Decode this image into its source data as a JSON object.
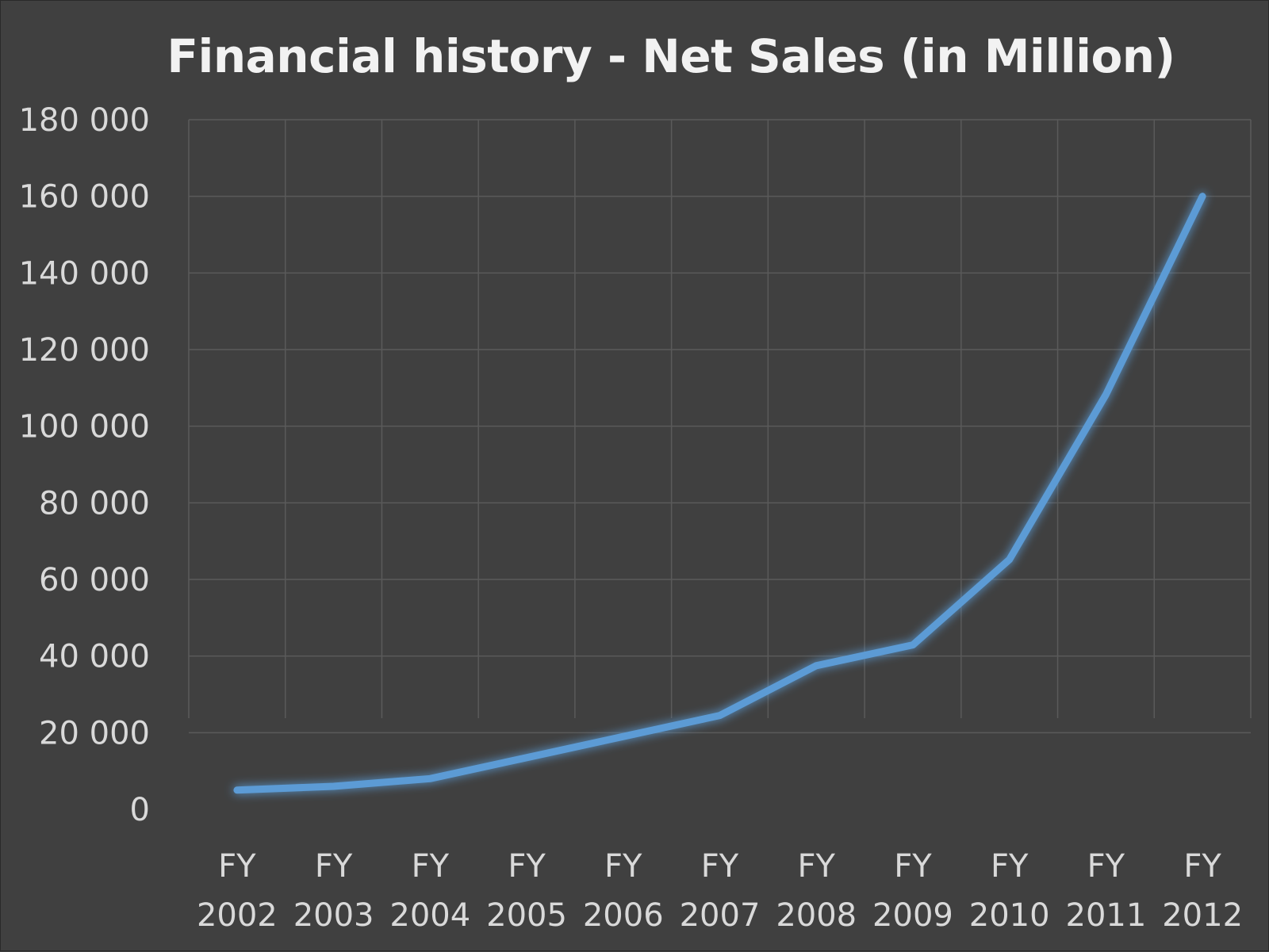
{
  "chart_data": {
    "type": "line",
    "title": "Financial history - Net Sales (in Million)",
    "xlabel": "",
    "ylabel": "",
    "categories": [
      [
        "FY",
        "2002"
      ],
      [
        "FY",
        "2003"
      ],
      [
        "FY",
        "2004"
      ],
      [
        "FY",
        "2005"
      ],
      [
        "FY",
        "2006"
      ],
      [
        "FY",
        "2007"
      ],
      [
        "FY",
        "2008"
      ],
      [
        "FY",
        "2009"
      ],
      [
        "FY",
        "2010"
      ],
      [
        "FY",
        "2011"
      ],
      [
        "FY",
        "2012"
      ]
    ],
    "series": [
      {
        "values": [
          5000,
          6000,
          8000,
          13500,
          19000,
          24500,
          37500,
          42900,
          65200,
          108250,
          160000
        ],
        "color": "#5b9bd5"
      }
    ],
    "ylim": [
      0,
      180000
    ],
    "yticks": [
      0,
      20000,
      40000,
      60000,
      80000,
      100000,
      120000,
      140000,
      160000,
      180000
    ],
    "ytick_labels": [
      "0",
      "20 000",
      "40 000",
      "60 000",
      "80 000",
      "100 000",
      "120 000",
      "140 000",
      "160 000",
      "180 000"
    ],
    "grid": true,
    "legend": "none",
    "background": "#404040",
    "gridline_color": "#5a5a5a",
    "text_color": "#d9d9d9",
    "title_color": "#f2f2f2"
  }
}
